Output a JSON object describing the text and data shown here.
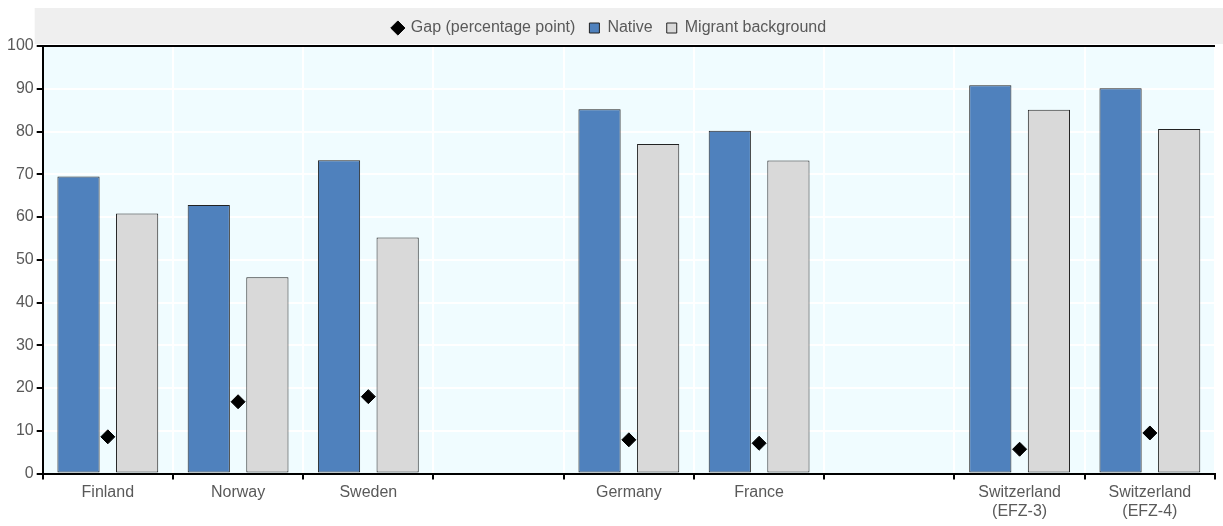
{
  "chart_data": {
    "type": "bar",
    "categories": [
      "Finland",
      "Norway",
      "Sweden",
      null,
      "Germany",
      "France",
      null,
      "Switzerland (EFZ-3)",
      "Switzerland (EFZ-4)"
    ],
    "series": [
      {
        "name": "Native",
        "color": "#4f81bd",
        "values": [
          69.5,
          62.8,
          73.3,
          null,
          85.2,
          80.2,
          null,
          90.8,
          90.1
        ]
      },
      {
        "name": "Migrant background",
        "color": "#d9d9d9",
        "values": [
          60.8,
          45.9,
          55.2,
          null,
          77.1,
          73.2,
          null,
          85.1,
          80.6
        ]
      },
      {
        "name": "Gap (percentage point)",
        "type": "scatter",
        "color": "#000000",
        "values": [
          8.6,
          16.8,
          18.0,
          null,
          7.9,
          7.1,
          null,
          5.7,
          9.5
        ]
      }
    ],
    "ylim": [
      0,
      100
    ],
    "yticks": [
      0,
      10,
      20,
      30,
      40,
      50,
      60,
      70,
      80,
      90,
      100
    ],
    "grid": true,
    "legend": "top",
    "marker": "diamond"
  }
}
